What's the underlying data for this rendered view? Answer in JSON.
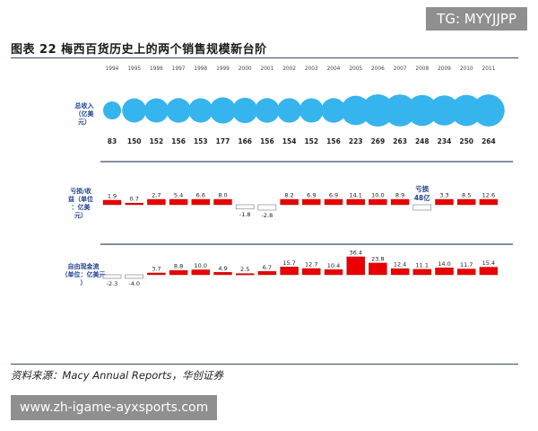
{
  "figure_title": "图表 22  梅西百货历史上的两个销售规模新台阶",
  "source_text": "资料来源：Macy Annual Reports，华创证券",
  "watermark_top": "TG: MYYJJPP",
  "watermark_bottom": "www.zh-igame-ayxsports.com",
  "colors": {
    "bubble": "#36b4ee",
    "bar": "#ea0000",
    "bar_border": "#a00000",
    "label": "#1f3f8f",
    "divider": "#3a4b6b"
  },
  "chart_data": [
    {
      "type": "bubble",
      "row_label": "总收入（亿美元）",
      "categories": [
        "1994",
        "1995",
        "1996",
        "1997",
        "1998",
        "1999",
        "2000",
        "2001",
        "2002",
        "2003",
        "2004",
        "2005",
        "2006",
        "2007",
        "2008",
        "2009",
        "2010",
        "2011"
      ],
      "values": [
        83,
        150,
        152,
        156,
        153,
        177,
        166,
        156,
        154,
        152,
        156,
        223,
        269,
        263,
        248,
        234,
        250,
        264
      ]
    },
    {
      "type": "bar",
      "row_label": "亏损/收益（单位：亿美元）",
      "categories": [
        "1994",
        "1995",
        "1996",
        "1997",
        "1998",
        "1999",
        "2000",
        "2001",
        "2002",
        "2003",
        "2004",
        "2005",
        "2006",
        "2007",
        "2008",
        "2009",
        "2010",
        "2011"
      ],
      "values": [
        1.9,
        0.7,
        2.7,
        5.4,
        6.6,
        8.0,
        -1.8,
        -2.8,
        8.2,
        6.9,
        6.9,
        14.1,
        10.0,
        8.9,
        -48,
        3.3,
        8.5,
        12.6
      ],
      "value_labels": [
        "1.9",
        "0.7",
        "2.7",
        "5.4",
        "6.6",
        "8.0",
        "-1.8",
        "-2.8",
        "8.2",
        "6.9",
        "6.9",
        "14.1",
        "10.0",
        "8.9",
        "",
        "3.3",
        "8.5",
        "12.6"
      ],
      "annotation": "亏损48亿"
    },
    {
      "type": "bar",
      "row_label": "自由现金流（单位：亿美元）",
      "categories": [
        "1994",
        "1995",
        "1996",
        "1997",
        "1998",
        "1999",
        "2000",
        "2001",
        "2002",
        "2003",
        "2004",
        "2005",
        "2006",
        "2007",
        "2008",
        "2009",
        "2010",
        "2011"
      ],
      "values": [
        -2.3,
        -4.0,
        3.7,
        8.8,
        10.0,
        4.9,
        2.5,
        6.7,
        15.7,
        12.7,
        10.4,
        36.4,
        23.8,
        12.4,
        11.1,
        14.0,
        11.7,
        15.4
      ],
      "value_labels": [
        "-2.3",
        "-4.0",
        "3.7",
        "8.8",
        "10.0",
        "4.9",
        "2.5",
        "6.7",
        "15.7",
        "12.7",
        "10.4",
        "36.4",
        "23.8",
        "12.4",
        "11.1",
        "14.0",
        "11.7",
        "15.4"
      ]
    }
  ]
}
